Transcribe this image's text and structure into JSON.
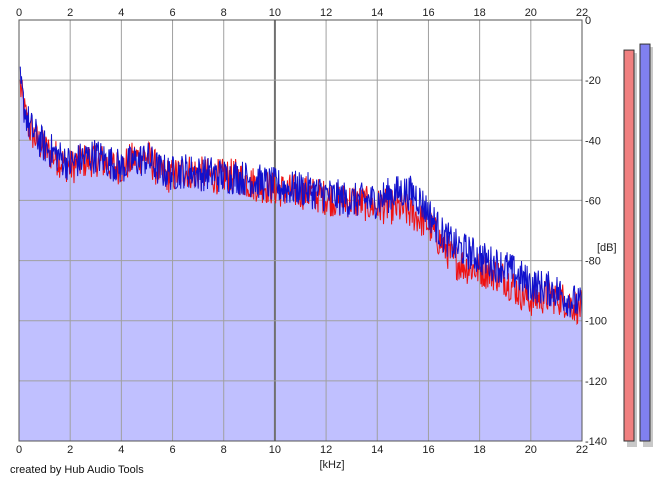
{
  "credit": "created by Hub Audio Tools",
  "chart_data": {
    "type": "line",
    "xlabel": "[kHz]",
    "ylabel": "[dB]",
    "xlim": [
      0,
      22
    ],
    "ylim": [
      -140,
      0
    ],
    "x_ticks": [
      0,
      2,
      4,
      6,
      8,
      10,
      12,
      14,
      16,
      18,
      20,
      22
    ],
    "y_ticks": [
      0,
      -20,
      -40,
      -60,
      -80,
      -100,
      -120,
      -140
    ],
    "grid": true,
    "colors": {
      "fill": "#c0c0ff",
      "series_red": "#ee1111",
      "series_blue": "#1111cc",
      "grid": "#a0a0a0",
      "grid_major": "#707070",
      "meter_left": "#f08080",
      "meter_right": "#8080f0"
    },
    "series": [
      {
        "color": "red",
        "x": [
          0.05,
          0.2,
          0.4,
          0.7,
          1.0,
          1.5,
          2.0,
          2.5,
          3.0,
          3.5,
          4.0,
          4.5,
          5.0,
          5.5,
          6.0,
          6.5,
          7.0,
          7.5,
          8.0,
          8.5,
          9.0,
          9.5,
          10.0,
          10.5,
          11.0,
          11.5,
          12.0,
          12.5,
          13.0,
          13.5,
          14.0,
          14.5,
          15.0,
          15.5,
          16.0,
          16.5,
          17.0,
          17.5,
          18.0,
          18.5,
          19.0,
          19.5,
          20.0,
          20.5,
          21.0,
          21.5,
          22.0
        ],
        "y": [
          -22,
          -30,
          -36,
          -40,
          -43,
          -46,
          -49,
          -47,
          -46,
          -48,
          -49,
          -46,
          -45,
          -51,
          -52,
          -50,
          -51,
          -52,
          -52,
          -52,
          -54,
          -55,
          -56,
          -57,
          -57,
          -58,
          -59,
          -60,
          -60,
          -61,
          -62,
          -62,
          -63,
          -65,
          -68,
          -74,
          -80,
          -82,
          -83,
          -84,
          -86,
          -90,
          -93,
          -92,
          -92,
          -94,
          -96
        ]
      },
      {
        "color": "blue",
        "x": [
          0.05,
          0.2,
          0.4,
          0.7,
          1.0,
          1.5,
          2.0,
          2.5,
          3.0,
          3.5,
          4.0,
          4.5,
          5.0,
          5.5,
          6.0,
          6.5,
          7.0,
          7.5,
          8.0,
          8.5,
          9.0,
          9.5,
          10.0,
          10.5,
          11.0,
          11.5,
          12.0,
          12.5,
          13.0,
          13.5,
          14.0,
          14.5,
          15.0,
          15.5,
          16.0,
          16.5,
          17.0,
          17.5,
          18.0,
          18.5,
          19.0,
          19.5,
          20.0,
          20.5,
          21.0,
          21.5,
          22.0
        ],
        "y": [
          -21,
          -29,
          -35,
          -39,
          -42,
          -45,
          -48,
          -46,
          -45,
          -47,
          -49,
          -47,
          -46,
          -50,
          -51,
          -50,
          -51,
          -51,
          -52,
          -52,
          -53,
          -54,
          -55,
          -56,
          -56,
          -57,
          -58,
          -59,
          -60,
          -60,
          -60,
          -58,
          -57,
          -58,
          -64,
          -71,
          -75,
          -77,
          -79,
          -81,
          -82,
          -85,
          -88,
          -89,
          -90,
          -93,
          -95
        ]
      }
    ],
    "meters": [
      {
        "color": "red",
        "value_db": -10
      },
      {
        "color": "blue",
        "value_db": -8
      }
    ]
  }
}
